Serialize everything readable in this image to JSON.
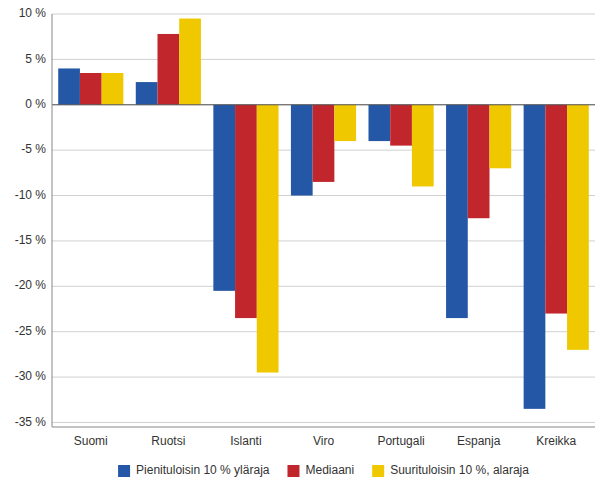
{
  "chart_data": {
    "type": "bar",
    "categories": [
      "Suomi",
      "Ruotsi",
      "Islanti",
      "Viro",
      "Portugali",
      "Espanja",
      "Kreikka"
    ],
    "series": [
      {
        "name": "Pienituloisin 10 % yläraja",
        "color": "#2458A6",
        "values": [
          4.0,
          2.5,
          -20.5,
          -10.0,
          -4.0,
          -23.5,
          -33.5
        ]
      },
      {
        "name": "Mediaani",
        "color": "#C0262B",
        "values": [
          3.5,
          7.8,
          -23.5,
          -8.5,
          -4.5,
          -12.5,
          -23.0
        ]
      },
      {
        "name": "Suurituloisin 10 %, alaraja",
        "color": "#F0C800",
        "values": [
          3.5,
          9.5,
          -29.5,
          -4.0,
          -9.0,
          -7.0,
          -27.0
        ]
      }
    ],
    "ylim": [
      -35.5,
      10
    ],
    "yticks": [
      {
        "value": -35,
        "label": "-35 %"
      },
      {
        "value": -30,
        "label": "-30 %"
      },
      {
        "value": -25,
        "label": "-25 %"
      },
      {
        "value": -20,
        "label": "-20 %"
      },
      {
        "value": -15,
        "label": "-15 %"
      },
      {
        "value": -10,
        "label": "-10 %"
      },
      {
        "value": -5,
        "label": "-5 %"
      },
      {
        "value": 0,
        "label": "0 %"
      },
      {
        "value": 5,
        "label": "5 %"
      },
      {
        "value": 10,
        "label": "10 %"
      }
    ],
    "grid": true,
    "legend": "bottom"
  }
}
